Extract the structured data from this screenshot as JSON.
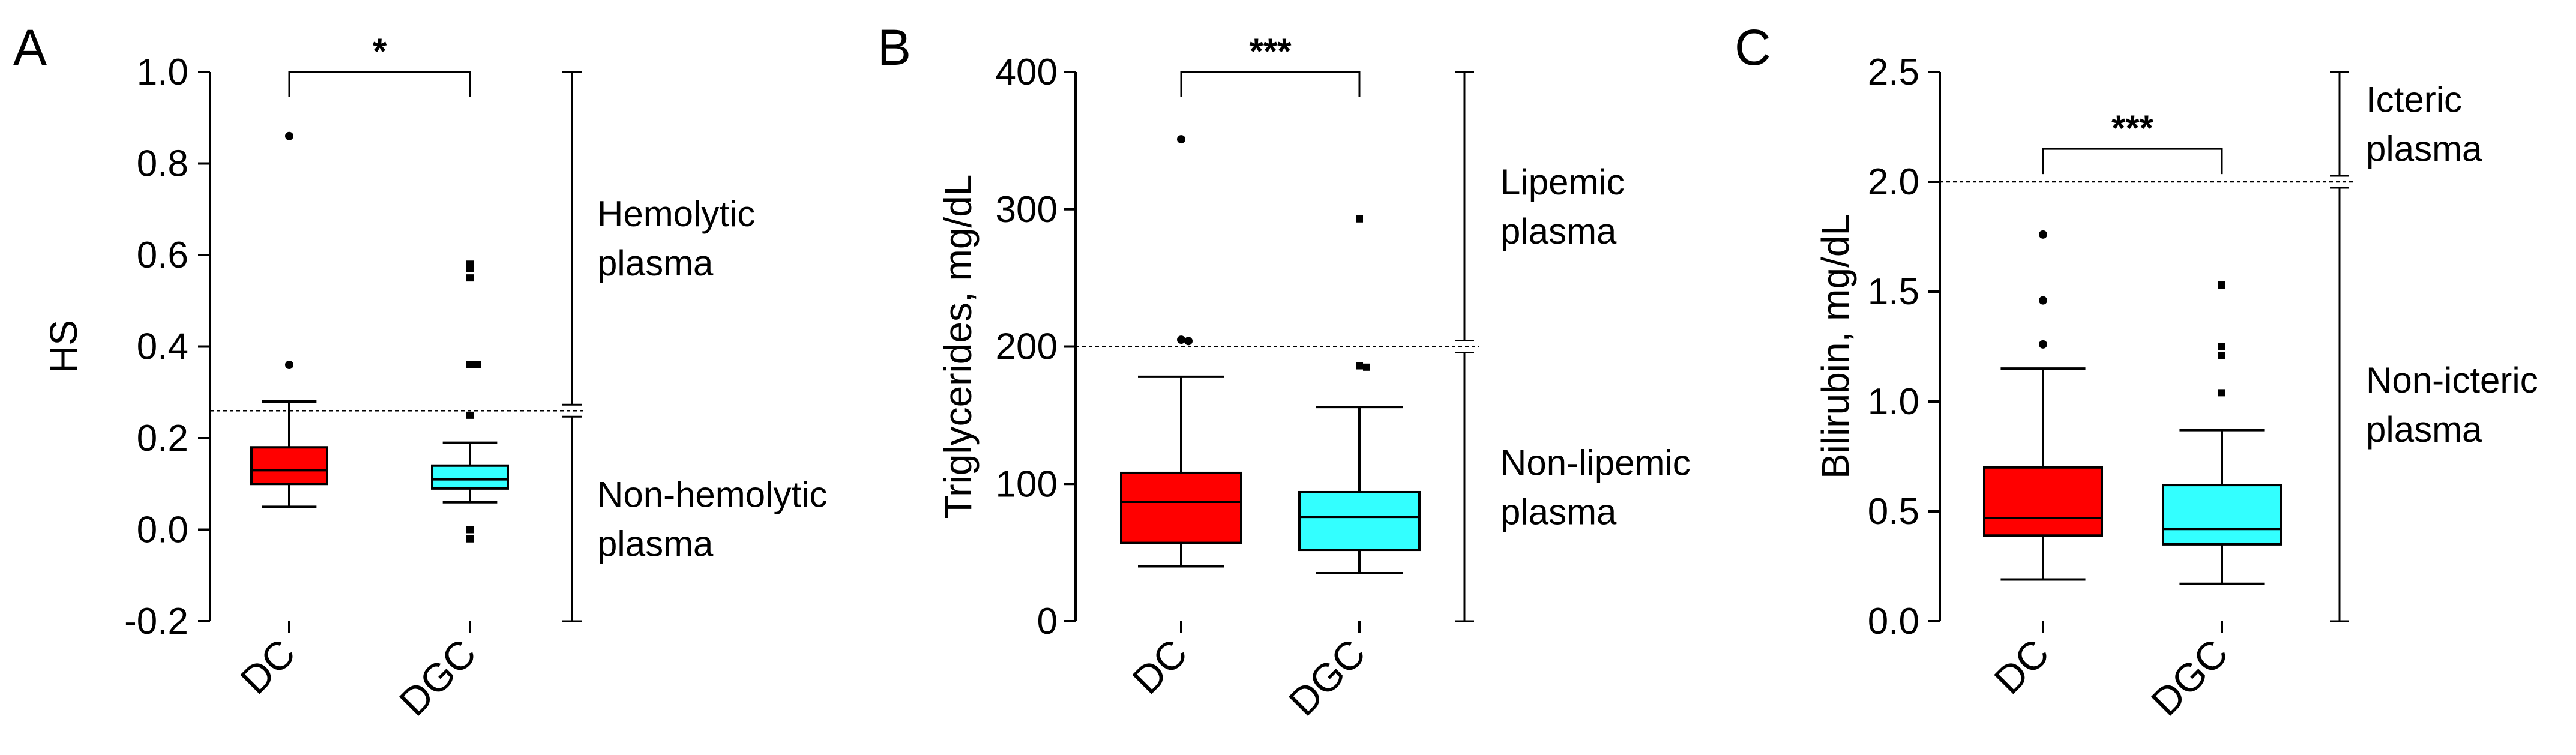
{
  "chart_data": [
    {
      "type": "box",
      "panel_label": "A",
      "ylabel": "HS",
      "ylim": [
        -0.2,
        1.0
      ],
      "yticks": [
        -0.2,
        0.0,
        0.2,
        0.4,
        0.6,
        0.8,
        1.0
      ],
      "ytick_labels": [
        "-0.2",
        "0.0",
        "0.2",
        "0.4",
        "0.6",
        "0.8",
        "1.0"
      ],
      "categories": [
        "DC",
        "DGC"
      ],
      "boxes": [
        {
          "category": "DC",
          "color": "#ff0000",
          "q1": 0.1,
          "median": 0.13,
          "q3": 0.18,
          "whisker_low": 0.05,
          "whisker_high": 0.28,
          "outliers": [
            0.86,
            0.36
          ]
        },
        {
          "category": "DGC",
          "color": "#33ffff",
          "q1": 0.09,
          "median": 0.11,
          "q3": 0.14,
          "whisker_low": 0.06,
          "whisker_high": 0.19,
          "outliers": [
            0.58,
            0.57,
            0.55,
            0.36,
            0.36,
            0.25,
            0.0,
            -0.02
          ]
        }
      ],
      "threshold": 0.26,
      "significance": "*",
      "significance_y": 1.0,
      "regions": [
        {
          "label_lines": [
            "Hemolytic",
            "plasma"
          ],
          "from": 0.26,
          "to": 1.0
        },
        {
          "label_lines": [
            "Non-hemolytic",
            "plasma"
          ],
          "from": -0.2,
          "to": 0.26
        }
      ]
    },
    {
      "type": "box",
      "panel_label": "B",
      "ylabel": "Triglycerides, mg/dL",
      "ylim": [
        0,
        400
      ],
      "yticks": [
        0,
        100,
        200,
        300,
        400
      ],
      "ytick_labels": [
        "0",
        "100",
        "200",
        "300",
        "400"
      ],
      "categories": [
        "DC",
        "DGC"
      ],
      "boxes": [
        {
          "category": "DC",
          "color": "#ff0000",
          "q1": 57,
          "median": 87,
          "q3": 108,
          "whisker_low": 40,
          "whisker_high": 178,
          "outliers": [
            351,
            205,
            204
          ]
        },
        {
          "category": "DGC",
          "color": "#33ffff",
          "q1": 52,
          "median": 76,
          "q3": 94,
          "whisker_low": 35,
          "whisker_high": 156,
          "outliers": [
            293,
            186,
            185
          ]
        }
      ],
      "threshold": 200,
      "significance": "***",
      "significance_y": 400,
      "regions": [
        {
          "label_lines": [
            "Lipemic",
            "plasma"
          ],
          "from": 200,
          "to": 400
        },
        {
          "label_lines": [
            "Non-lipemic",
            "plasma"
          ],
          "from": 0,
          "to": 200
        }
      ]
    },
    {
      "type": "box",
      "panel_label": "C",
      "ylabel": "Bilirubin, mg/dL",
      "ylim": [
        0,
        2.5
      ],
      "yticks": [
        0.0,
        0.5,
        1.0,
        1.5,
        2.0,
        2.5
      ],
      "ytick_labels": [
        "0.0",
        "0.5",
        "1.0",
        "1.5",
        "2.0",
        "2.5"
      ],
      "categories": [
        "DC",
        "DGC"
      ],
      "boxes": [
        {
          "category": "DC",
          "color": "#ff0000",
          "q1": 0.39,
          "median": 0.47,
          "q3": 0.7,
          "whisker_low": 0.19,
          "whisker_high": 1.15,
          "outliers": [
            1.76,
            1.46,
            1.26
          ]
        },
        {
          "category": "DGC",
          "color": "#33ffff",
          "q1": 0.35,
          "median": 0.42,
          "q3": 0.62,
          "whisker_low": 0.17,
          "whisker_high": 0.87,
          "outliers": [
            1.53,
            1.25,
            1.21,
            1.04
          ]
        }
      ],
      "threshold": 2.0,
      "significance": "***",
      "significance_y": 2.15,
      "regions": [
        {
          "label_lines": [
            "Icteric",
            "plasma"
          ],
          "from": 2.0,
          "to": 2.5
        },
        {
          "label_lines": [
            "Non-icteric",
            "plasma"
          ],
          "from": 0,
          "to": 2.0
        }
      ]
    }
  ]
}
